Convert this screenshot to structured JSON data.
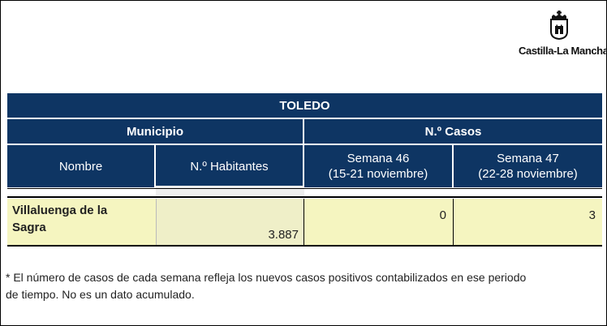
{
  "logo": {
    "text": "Castilla-La Mancha",
    "icon": "castle-crest-icon"
  },
  "table": {
    "title": "TOLEDO",
    "group_headers": {
      "municipio": "Municipio",
      "casos": "N.º Casos"
    },
    "columns": {
      "nombre": "Nombre",
      "habitantes": "N.º Habitantes",
      "semana46_line1": "Semana 46",
      "semana46_line2": "(15-21 noviembre)",
      "semana47_line1": "Semana 47",
      "semana47_line2": "(22-28 noviembre)"
    },
    "rows": [
      {
        "nombre_line1": "Villaluenga de la",
        "nombre_line2": "Sagra",
        "habitantes": "3.887",
        "semana46": "0",
        "semana47": "3"
      }
    ]
  },
  "footnote": {
    "line1": "* El número de casos de cada semana refleja los nuevos casos positivos contabilizados en ese periodo",
    "line2": "de tiempo. No es un dato acumulado."
  },
  "colors": {
    "header_bg": "#0e3563",
    "row_bg": "#f5f5c0"
  }
}
